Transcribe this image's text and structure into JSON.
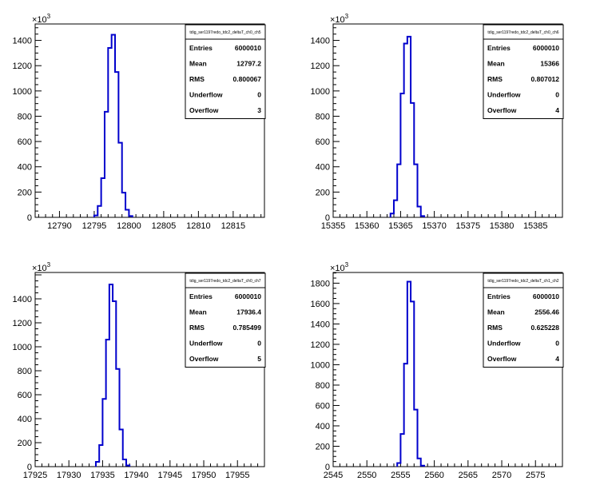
{
  "chart_data": [
    {
      "type": "histogram",
      "title": "tdig_ser1197redo_tdc2_deltaT_ch0_ch5",
      "y_multiplier_label": "×10",
      "y_multiplier_exponent": "3",
      "xlim": [
        12786.5,
        12819.5
      ],
      "ylim": [
        0,
        1530
      ],
      "x_ticks": [
        12790,
        12795,
        12800,
        12805,
        12810,
        12815
      ],
      "y_ticks": [
        0,
        200,
        400,
        600,
        800,
        1000,
        1200,
        1400
      ],
      "y_tick_labels": [
        "0",
        "200",
        "400",
        "600",
        "800",
        "1000",
        "1200",
        "1400"
      ],
      "bins": [
        {
          "x0": 12795.0,
          "x1": 12795.5,
          "y": 15
        },
        {
          "x0": 12795.5,
          "x1": 12796.0,
          "y": 90
        },
        {
          "x0": 12796.0,
          "x1": 12796.5,
          "y": 310
        },
        {
          "x0": 12796.5,
          "x1": 12797.0,
          "y": 835
        },
        {
          "x0": 12797.0,
          "x1": 12797.5,
          "y": 1340
        },
        {
          "x0": 12797.5,
          "x1": 12798.0,
          "y": 1445
        },
        {
          "x0": 12798.0,
          "x1": 12798.5,
          "y": 1150
        },
        {
          "x0": 12798.5,
          "x1": 12799.0,
          "y": 590
        },
        {
          "x0": 12799.0,
          "x1": 12799.5,
          "y": 195
        },
        {
          "x0": 12799.5,
          "x1": 12800.0,
          "y": 60
        },
        {
          "x0": 12800.0,
          "x1": 12800.5,
          "y": 10
        }
      ],
      "stats": [
        {
          "label": "Entries",
          "value": "6000010"
        },
        {
          "label": "Mean",
          "value": "12797.2"
        },
        {
          "label": "RMS",
          "value": "0.800067"
        },
        {
          "label": "Underflow",
          "value": "0"
        },
        {
          "label": "Overflow",
          "value": "3"
        }
      ]
    },
    {
      "type": "histogram",
      "title": "tdig_ser1197redo_tdc2_deltaT_ch0_ch6",
      "y_multiplier_label": "×10",
      "y_multiplier_exponent": "3",
      "xlim": [
        15355,
        15389
      ],
      "ylim": [
        0,
        1530
      ],
      "x_ticks": [
        15355,
        15360,
        15365,
        15370,
        15375,
        15380,
        15385
      ],
      "y_ticks": [
        0,
        200,
        400,
        600,
        800,
        1000,
        1200,
        1400
      ],
      "y_tick_labels": [
        "0",
        "200",
        "400",
        "600",
        "800",
        "1000",
        "1200",
        "1400"
      ],
      "bins": [
        {
          "x0": 15363.5,
          "x1": 15364.0,
          "y": 30
        },
        {
          "x0": 15364.0,
          "x1": 15364.5,
          "y": 135
        },
        {
          "x0": 15364.5,
          "x1": 15365.0,
          "y": 420
        },
        {
          "x0": 15365.0,
          "x1": 15365.5,
          "y": 980
        },
        {
          "x0": 15365.5,
          "x1": 15366.0,
          "y": 1375
        },
        {
          "x0": 15366.0,
          "x1": 15366.5,
          "y": 1430
        },
        {
          "x0": 15366.5,
          "x1": 15367.0,
          "y": 905
        },
        {
          "x0": 15367.0,
          "x1": 15367.5,
          "y": 420
        },
        {
          "x0": 15367.5,
          "x1": 15368.0,
          "y": 85
        },
        {
          "x0": 15368.0,
          "x1": 15368.5,
          "y": 10
        }
      ],
      "stats": [
        {
          "label": "Entries",
          "value": "6000010"
        },
        {
          "label": "Mean",
          "value": "15366"
        },
        {
          "label": "RMS",
          "value": "0.807012"
        },
        {
          "label": "Underflow",
          "value": "0"
        },
        {
          "label": "Overflow",
          "value": "4"
        }
      ]
    },
    {
      "type": "histogram",
      "title": "tdig_ser1197redo_tdc2_deltaT_ch0_ch7",
      "y_multiplier_label": "×10",
      "y_multiplier_exponent": "3",
      "xlim": [
        17925,
        17959
      ],
      "ylim": [
        0,
        1620
      ],
      "x_ticks": [
        17925,
        17930,
        17935,
        17940,
        17945,
        17950,
        17955
      ],
      "y_ticks": [
        0,
        200,
        400,
        600,
        800,
        1000,
        1200,
        1400
      ],
      "y_tick_labels": [
        "0",
        "200",
        "400",
        "600",
        "800",
        "1000",
        "1200",
        "1400"
      ],
      "bins": [
        {
          "x0": 17934.0,
          "x1": 17934.5,
          "y": 40
        },
        {
          "x0": 17934.5,
          "x1": 17935.0,
          "y": 180
        },
        {
          "x0": 17935.0,
          "x1": 17935.5,
          "y": 565
        },
        {
          "x0": 17935.5,
          "x1": 17936.0,
          "y": 1060
        },
        {
          "x0": 17936.0,
          "x1": 17936.5,
          "y": 1520
        },
        {
          "x0": 17936.5,
          "x1": 17937.0,
          "y": 1380
        },
        {
          "x0": 17937.0,
          "x1": 17937.5,
          "y": 815
        },
        {
          "x0": 17937.5,
          "x1": 17938.0,
          "y": 310
        },
        {
          "x0": 17938.0,
          "x1": 17938.5,
          "y": 60
        },
        {
          "x0": 17938.5,
          "x1": 17939.0,
          "y": 10
        }
      ],
      "stats": [
        {
          "label": "Entries",
          "value": "6000010"
        },
        {
          "label": "Mean",
          "value": "17936.4"
        },
        {
          "label": "RMS",
          "value": "0.785499"
        },
        {
          "label": "Underflow",
          "value": "0"
        },
        {
          "label": "Overflow",
          "value": "5"
        }
      ]
    },
    {
      "type": "histogram",
      "title": "tdig_ser1197redo_tdc2_deltaT_ch1_ch2",
      "y_multiplier_label": "×10",
      "y_multiplier_exponent": "3",
      "xlim": [
        2545,
        2579
      ],
      "ylim": [
        0,
        1905
      ],
      "x_ticks": [
        2545,
        2550,
        2555,
        2560,
        2565,
        2570,
        2575
      ],
      "y_ticks": [
        0,
        200,
        400,
        600,
        800,
        1000,
        1200,
        1400,
        1600,
        1800
      ],
      "y_tick_labels": [
        "0",
        "200",
        "400",
        "600",
        "800",
        "1000",
        "1200",
        "1400",
        "1600",
        "1800"
      ],
      "bins": [
        {
          "x0": 2554.5,
          "x1": 2555.0,
          "y": 35
        },
        {
          "x0": 2555.0,
          "x1": 2555.5,
          "y": 320
        },
        {
          "x0": 2555.5,
          "x1": 2556.0,
          "y": 1010
        },
        {
          "x0": 2556.0,
          "x1": 2556.5,
          "y": 1815
        },
        {
          "x0": 2556.5,
          "x1": 2557.0,
          "y": 1620
        },
        {
          "x0": 2557.0,
          "x1": 2557.5,
          "y": 560
        },
        {
          "x0": 2557.5,
          "x1": 2558.0,
          "y": 80
        },
        {
          "x0": 2558.0,
          "x1": 2558.5,
          "y": 10
        }
      ],
      "stats": [
        {
          "label": "Entries",
          "value": "6000010"
        },
        {
          "label": "Mean",
          "value": "2556.46"
        },
        {
          "label": "RMS",
          "value": "0.625228"
        },
        {
          "label": "Underflow",
          "value": "0"
        },
        {
          "label": "Overflow",
          "value": "4"
        }
      ]
    }
  ],
  "colors": {
    "histogram_line": "#0000cc",
    "axis": "#000000",
    "background": "#ffffff"
  }
}
